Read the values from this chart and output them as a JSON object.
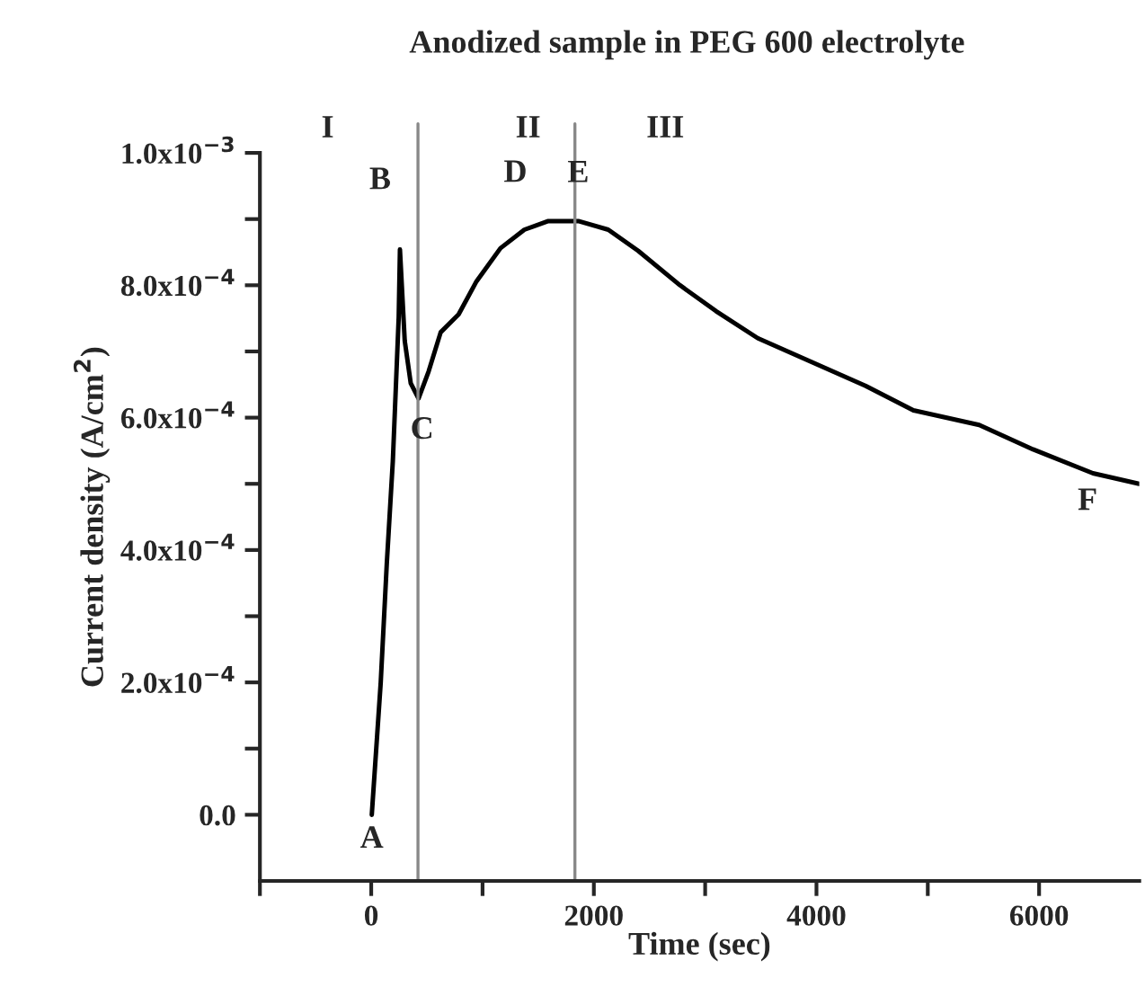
{
  "chart_data": {
    "type": "line",
    "title": "Anodized sample in PEG 600 electrolyte",
    "xlabel": "Time (sec)",
    "ylabel": "Current density (A/cm$^{2}$)",
    "x": [
      5,
      85,
      140,
      194,
      247,
      258,
      301,
      355,
      425,
      516,
      624,
      785,
      946,
      1161,
      1376,
      1591,
      1860,
      2129,
      2398,
      2774,
      3097,
      3473,
      3957,
      4441,
      4871,
      5462,
      5946,
      6484,
      6900
    ],
    "series": [
      {
        "color": "#000000",
        "values": [
          0.0,
          0.000199,
          0.00038,
          0.000534,
          0.000752,
          0.000854,
          0.000716,
          0.000652,
          0.000629,
          0.00067,
          0.000729,
          0.000756,
          0.000806,
          0.000856,
          0.000884,
          0.000897,
          0.000897,
          0.000884,
          0.000852,
          0.0008,
          0.000761,
          0.00072,
          0.000684,
          0.000648,
          0.000611,
          0.000589,
          0.000552,
          0.000516,
          0.0005
        ]
      }
    ],
    "xlim": [
      -1000,
      6900
    ],
    "ylim": [
      -0.0001,
      0.001
    ],
    "xticks": [
      {
        "value": -1000,
        "label": null
      },
      0,
      {
        "value": 1000,
        "label": null
      },
      2000,
      {
        "value": 3000,
        "label": null
      },
      4000,
      {
        "value": 5000,
        "label": null
      },
      6000
    ],
    "yticks": [
      {
        "value": 0,
        "label": "0.0"
      },
      {
        "value": 0.0001,
        "label": null
      },
      {
        "value": 0.0002,
        "label": "2.0x10$^{−4}$"
      },
      {
        "value": 0.0003,
        "label": null
      },
      {
        "value": 0.0004,
        "label": "4.0x10$^{−4}$"
      },
      {
        "value": 0.0005,
        "label": null
      },
      {
        "value": 0.0006,
        "label": "6.0x10$^{−4}$"
      },
      {
        "value": 0.0007,
        "label": null
      },
      {
        "value": 0.0008,
        "label": "8.0x10$^{−4}$"
      },
      {
        "value": 0.0009,
        "label": null
      },
      {
        "value": 0.001,
        "label": "1.0x10$^{−3}$"
      }
    ],
    "ref_lines": [
      {
        "axis": "x",
        "value": 420,
        "color": "#888888"
      },
      {
        "axis": "x",
        "value": 1830,
        "color": "#888888"
      }
    ],
    "annotations": [
      {
        "text": "A",
        "x": 5,
        "y": 0.0
      },
      {
        "text": "B",
        "x": 258,
        "y": 0.000854
      },
      {
        "text": "C",
        "x": 425,
        "y": 0.000629
      },
      {
        "text": "D",
        "x": 1376,
        "y": 0.000884
      },
      {
        "text": "E",
        "x": 1860,
        "y": 0.000897
      },
      {
        "text": "F",
        "x": 6484,
        "y": 0.000516
      },
      "I",
      "II",
      "III"
    ],
    "grid": false,
    "legend": false,
    "line_style": "solid",
    "marker": "none"
  }
}
